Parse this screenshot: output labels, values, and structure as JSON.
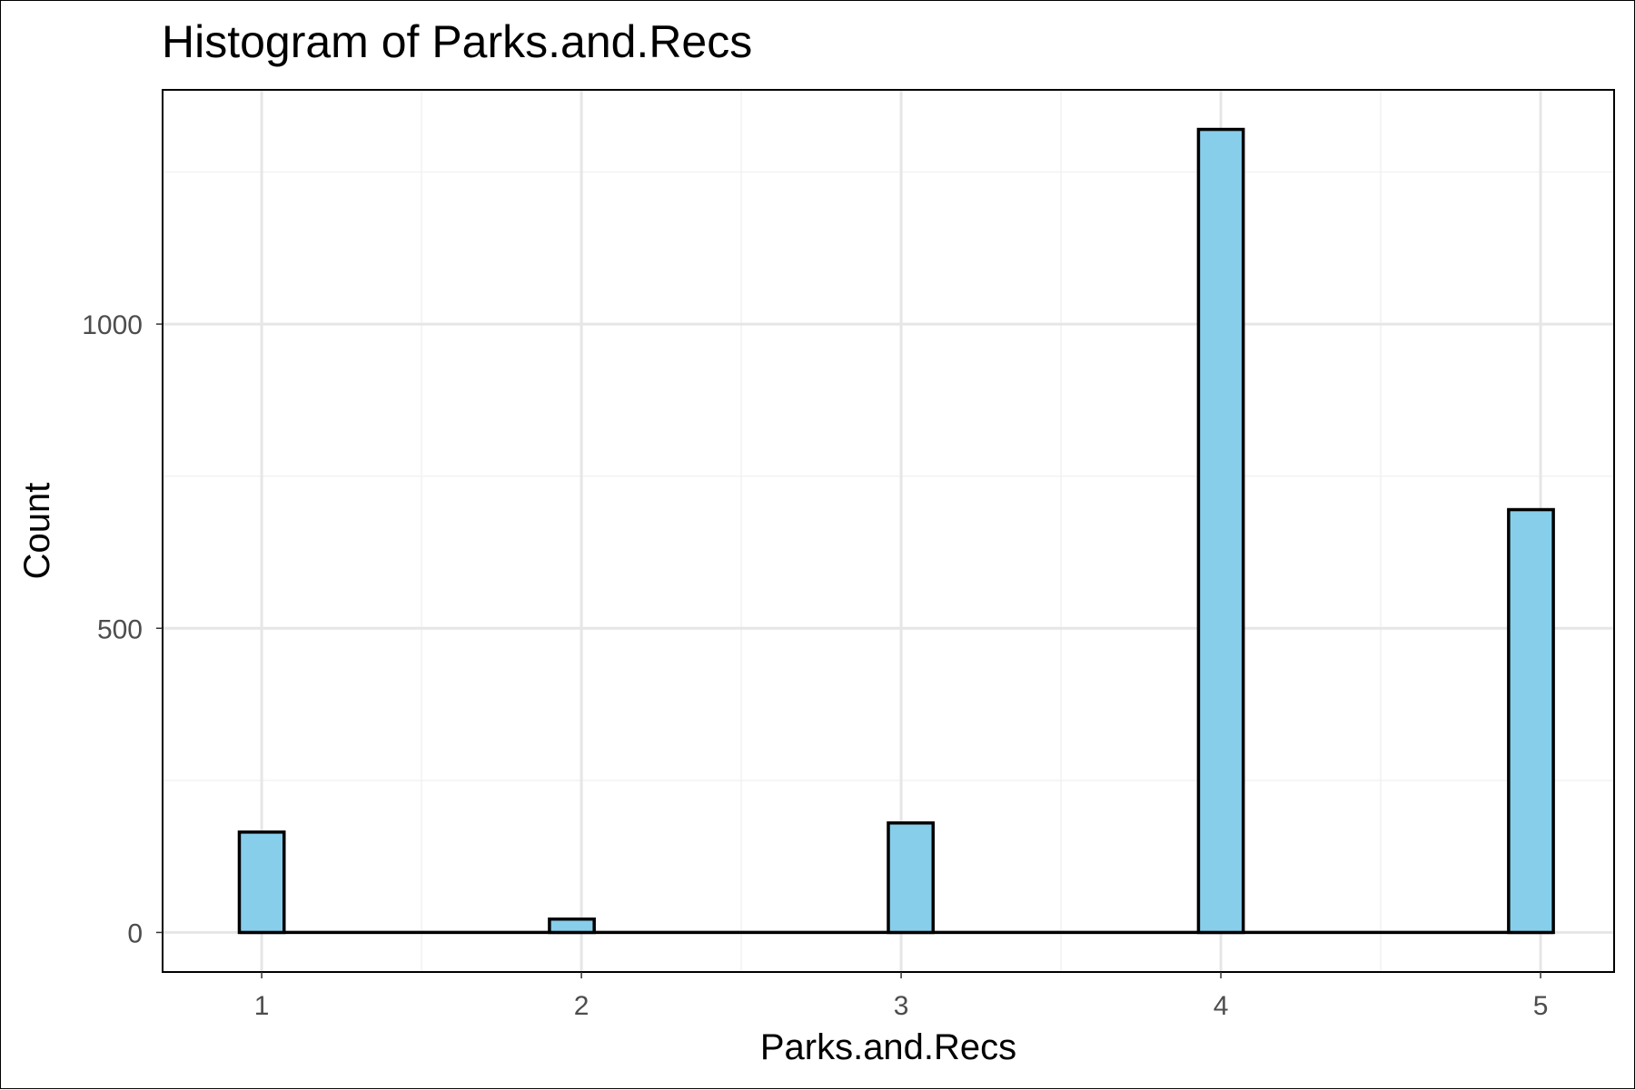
{
  "chart_data": {
    "type": "bar",
    "title": "Histogram of Parks.and.Recs",
    "xlabel": "Parks.and.Recs",
    "ylabel": "Count",
    "x_ticks": [
      1,
      2,
      3,
      4,
      5
    ],
    "y_ticks": [
      0,
      500,
      1000
    ],
    "xlim": [
      0.69,
      5.23
    ],
    "ylim": [
      -65,
      1385
    ],
    "bin_width": 0.14,
    "bins": [
      {
        "x": 1.0,
        "count": 165
      },
      {
        "x": 1.97,
        "count": 22
      },
      {
        "x": 3.03,
        "count": 180
      },
      {
        "x": 4.0,
        "count": 1320
      },
      {
        "x": 4.97,
        "count": 695
      }
    ],
    "grid": true,
    "colors": {
      "fill": "#87ceeb",
      "outline": "#000000",
      "grid_major": "#e6e6e6",
      "grid_minor": "#f2f2f2"
    }
  }
}
